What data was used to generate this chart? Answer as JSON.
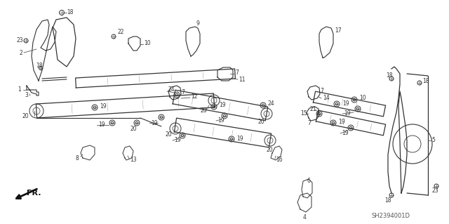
{
  "bg_color": "#ffffff",
  "diagram_code": "SH2394001D",
  "fig_width": 6.4,
  "fig_height": 3.19,
  "dpi": 100,
  "label_fontsize": 5.5,
  "label_color": "#222222",
  "line_color": "#333333",
  "leader_color": "#555555"
}
